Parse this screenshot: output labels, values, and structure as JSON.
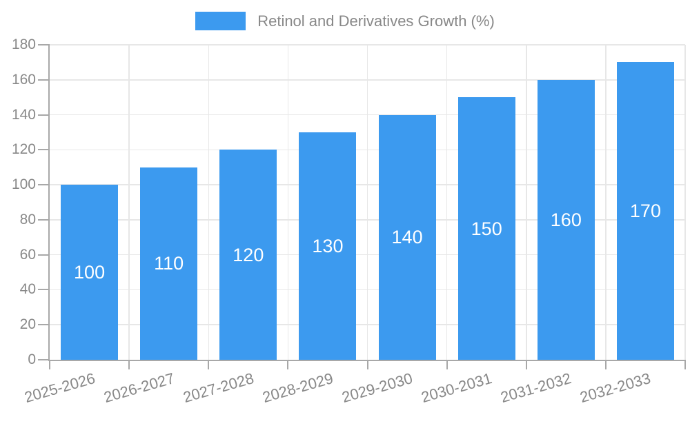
{
  "chart_data": {
    "type": "bar",
    "title": "Retinol and Derivatives Growth (%)",
    "legend_label": "Retinol and Derivatives Growth (%)",
    "legend_position": "top",
    "categories": [
      "2025-2026",
      "2026-2027",
      "2027-2028",
      "2028-2029",
      "2029-2030",
      "2030-2031",
      "2031-2032",
      "2032-2033"
    ],
    "values": [
      100,
      110,
      120,
      130,
      140,
      150,
      160,
      170
    ],
    "xlabel": "",
    "ylabel": "",
    "ylim": [
      0,
      180
    ],
    "y_ticks": [
      "0",
      "20",
      "40",
      "60",
      "80",
      "100",
      "120",
      "140",
      "160",
      "180"
    ],
    "grid": true,
    "x_label_rotation_deg": -16,
    "colors": {
      "bar": "#3c9aef",
      "bar_value_text": "#ffffff",
      "grid": "#e7e7e7",
      "axis": "#a8a8a8",
      "tick_text": "#888888",
      "legend_text": "#888888"
    }
  }
}
